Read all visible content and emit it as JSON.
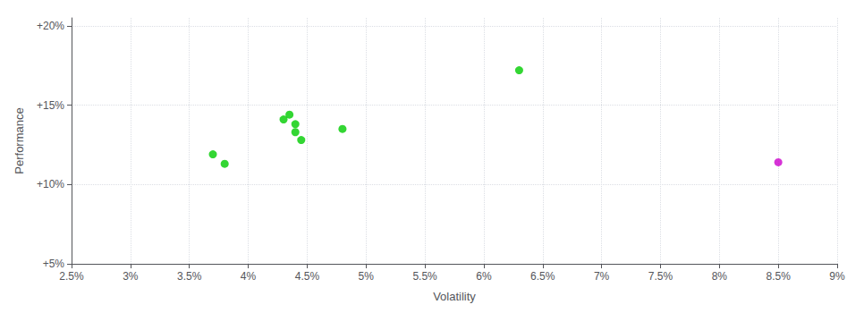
{
  "chart_data": {
    "type": "scatter",
    "xlabel": "Volatility",
    "ylabel": "Performance",
    "xlim": [
      0.025,
      0.09
    ],
    "ylim": [
      0.05,
      0.205
    ],
    "xticks": [
      {
        "value": 0.025,
        "label": "2.5%"
      },
      {
        "value": 0.03,
        "label": "3%"
      },
      {
        "value": 0.035,
        "label": "3.5%"
      },
      {
        "value": 0.04,
        "label": "4%"
      },
      {
        "value": 0.045,
        "label": "4.5%"
      },
      {
        "value": 0.05,
        "label": "5%"
      },
      {
        "value": 0.055,
        "label": "5.5%"
      },
      {
        "value": 0.06,
        "label": "6%"
      },
      {
        "value": 0.065,
        "label": "6.5%"
      },
      {
        "value": 0.07,
        "label": "7%"
      },
      {
        "value": 0.075,
        "label": "7.5%"
      },
      {
        "value": 0.08,
        "label": "8%"
      },
      {
        "value": 0.085,
        "label": "8.5%"
      },
      {
        "value": 0.09,
        "label": "9%"
      }
    ],
    "yticks": [
      {
        "value": 0.05,
        "label": "+5%"
      },
      {
        "value": 0.1,
        "label": "+10%"
      },
      {
        "value": 0.15,
        "label": "+15%"
      },
      {
        "value": 0.2,
        "label": "+20%"
      }
    ],
    "grid": true,
    "series": [
      {
        "color": "#00cc00",
        "x": [
          0.037,
          0.038,
          0.043,
          0.0435,
          0.044,
          0.044,
          0.0445,
          0.048,
          0.063
        ],
        "values": [
          0.119,
          0.113,
          0.141,
          0.144,
          0.138,
          0.133,
          0.128,
          0.135,
          0.172
        ]
      },
      {
        "color": "#cc00cc",
        "x": [
          0.085
        ],
        "values": [
          0.114
        ]
      }
    ]
  }
}
